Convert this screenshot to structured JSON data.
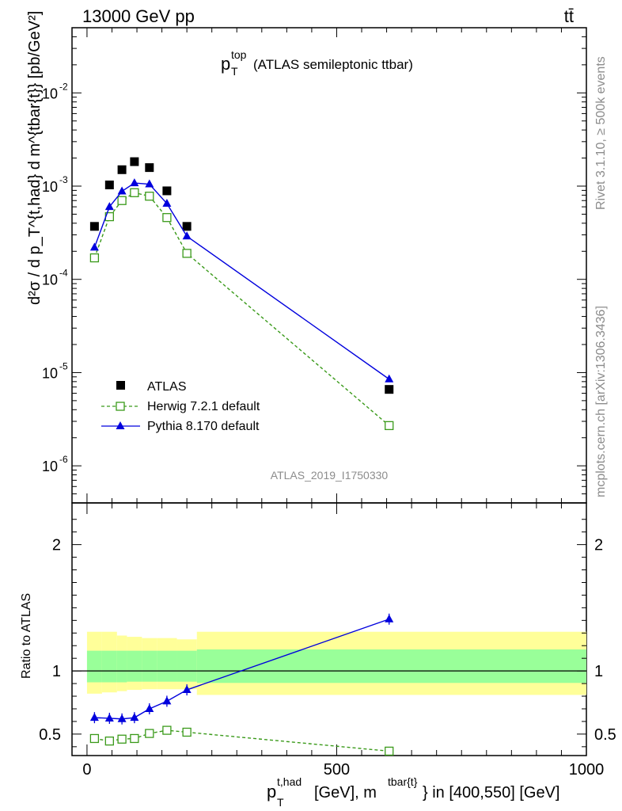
{
  "header": {
    "energy": "13000 GeV pp",
    "process": "tt̄"
  },
  "side": {
    "rivet": "Rivet 3.1.10, ≥ 500k events",
    "mcplots": "mcplots.cern.ch [arXiv:1306.3436]"
  },
  "chart_data": [
    {
      "type": "scatter",
      "title_main": "p",
      "title_sup": "top",
      "title_sub": "T",
      "title_rest": "(ATLAS semileptonic ttbar)",
      "ylabel": "d²σ / d p_T^{t,had} d m^{tbar{t}} [pb/GeV²]",
      "yscale": "log",
      "ylim": [
        4e-07,
        0.05
      ],
      "xlim": [
        -30,
        1000
      ],
      "ytick_labels": [
        "10^-6",
        "10^-5",
        "10^-4",
        "10^-3",
        "10^-2"
      ],
      "watermark": "ATLAS_2019_I1750330",
      "x": [
        15,
        45,
        70,
        95,
        125,
        160,
        200,
        605
      ],
      "series": [
        {
          "name": "ATLAS",
          "marker": "square-filled",
          "color": "#000000",
          "values": [
            0.00037,
            0.00103,
            0.0015,
            0.00183,
            0.00158,
            0.00089,
            0.00037,
            6.6e-06
          ]
        },
        {
          "name": "Herwig 7.2.1 default",
          "marker": "square-open",
          "color": "#3a9a1a",
          "line": "dashed",
          "values": [
            0.00017,
            0.00047,
            0.0007,
            0.00085,
            0.00078,
            0.00046,
            0.00019,
            2.7e-06
          ]
        },
        {
          "name": "Pythia 8.170 default",
          "marker": "triangle-filled",
          "color": "#0000dd",
          "line": "solid",
          "values": [
            0.00022,
            0.0006,
            0.00088,
            0.00108,
            0.00105,
            0.00065,
            0.00029,
            8.5e-06
          ]
        }
      ],
      "legend": [
        "ATLAS",
        "Herwig 7.2.1 default",
        "Pythia 8.170 default"
      ]
    },
    {
      "type": "scatter",
      "ylabel": "Ratio to ATLAS",
      "ylim": [
        0.33,
        2.33
      ],
      "xlim": [
        -30,
        1000
      ],
      "ytick_labels": [
        "0.5",
        "1",
        "2"
      ],
      "xtick_labels": [
        "0",
        "500",
        "1000"
      ],
      "xlabel_main": "p",
      "xlabel_sup": "t,had",
      "xlabel_sub": "T",
      "xlabel_rest": "[GeV], m",
      "xlabel_sup2": "tbar{t}",
      "xlabel_end": "} in [400,550] [GeV]",
      "x": [
        15,
        45,
        70,
        95,
        125,
        160,
        200,
        605
      ],
      "bands": {
        "edges": [
          0,
          30,
          60,
          80,
          110,
          140,
          180,
          220,
          1000
        ],
        "inner_lo": [
          0.91,
          0.91,
          0.91,
          0.915,
          0.915,
          0.915,
          0.915,
          0.905
        ],
        "inner_hi": [
          1.16,
          1.16,
          1.16,
          1.16,
          1.16,
          1.16,
          1.16,
          1.17
        ],
        "outer_lo": [
          0.82,
          0.83,
          0.84,
          0.85,
          0.855,
          0.855,
          0.855,
          0.81
        ],
        "outer_hi": [
          1.31,
          1.31,
          1.28,
          1.27,
          1.26,
          1.26,
          1.25,
          1.31
        ]
      },
      "series": [
        {
          "name": "Herwig 7.2.1 default",
          "color": "#3a9a1a",
          "values": [
            0.465,
            0.445,
            0.46,
            0.465,
            0.505,
            0.53,
            0.515,
            0.365
          ]
        },
        {
          "name": "Pythia 8.170 default",
          "color": "#0000dd",
          "values": [
            0.63,
            0.625,
            0.62,
            0.63,
            0.7,
            0.76,
            0.85,
            1.41
          ]
        }
      ]
    }
  ]
}
